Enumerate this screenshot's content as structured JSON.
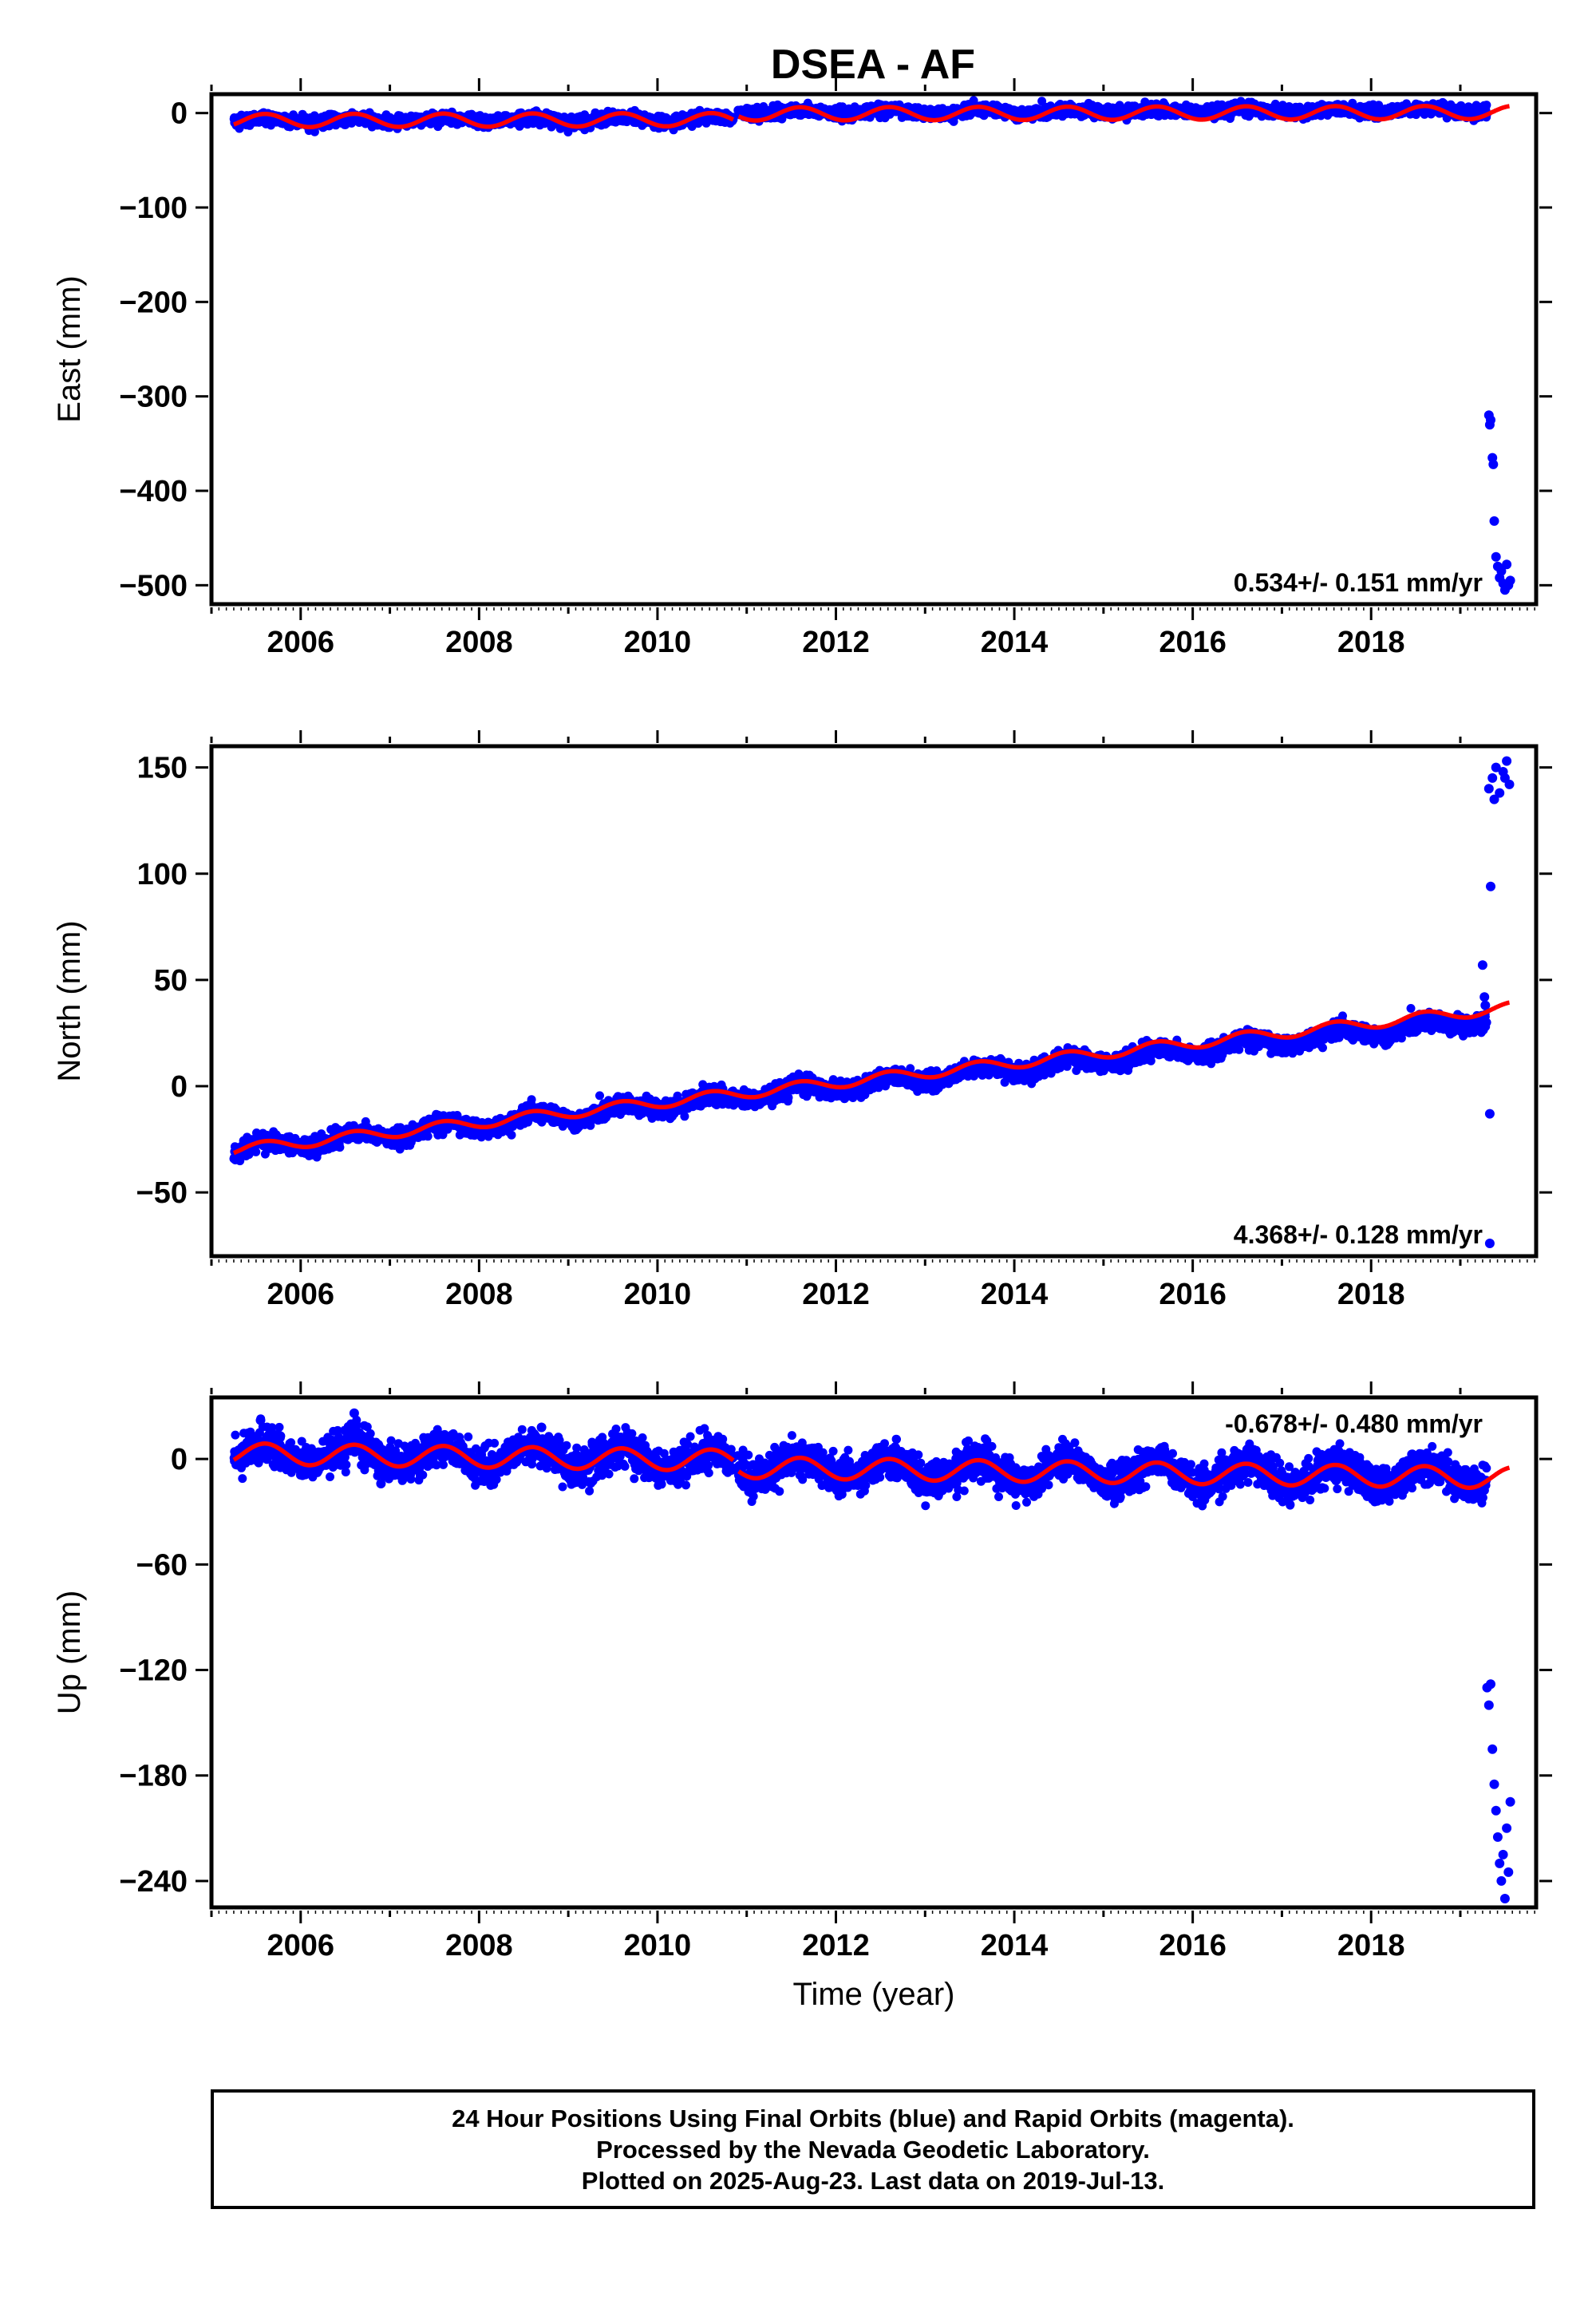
{
  "title": "DSEA - AF",
  "xlabel": "Time (year)",
  "colors": {
    "final_orbits": "#0000ff",
    "fit_model": "#ff0000",
    "frame": "#000000"
  },
  "caption": {
    "line1": "24 Hour Positions Using Final Orbits (blue) and Rapid Orbits (magenta).",
    "line2": "Processed by the Nevada Geodetic Laboratory.",
    "line3": "Plotted on 2025-Aug-23. Last data on 2019-Jul-13."
  },
  "chart_data": [
    {
      "type": "scatter",
      "title": "DSEA - AF",
      "ylabel": "East (mm)",
      "xlabel": "",
      "velocity_label": "0.534+/- 0.151 mm/yr",
      "velocity_label_position": "bottom-right",
      "xlim": [
        2005.0,
        2019.85
      ],
      "ylim": [
        -520,
        20
      ],
      "x_ticks": [
        2006,
        2008,
        2010,
        2012,
        2014,
        2016,
        2018
      ],
      "y_ticks": [
        0,
        -100,
        -200,
        -300,
        -400,
        -500
      ],
      "y_tick_labels": [
        "0",
        "−100",
        "−200",
        "−300",
        "−400",
        "−500"
      ],
      "grid": false,
      "series": [
        {
          "role": "final_orbits_daily_positions",
          "marker": "dot",
          "color": "#0000ff",
          "x_start": 2005.25,
          "x_end": 2019.3,
          "trend": {
            "offset_mm": -8,
            "rate_mm_per_yr": 0.534,
            "seasonal_amplitude_mm": 2,
            "scatter_mm": 3
          },
          "segments": [
            {
              "x_start": 2005.25,
              "x_end": 2010.85,
              "offset_mm": -8
            },
            {
              "x_start": 2010.9,
              "x_end": 2019.3,
              "offset_mm": 0
            }
          ],
          "outliers": [
            {
              "x": 2019.32,
              "y": -320
            },
            {
              "x": 2019.33,
              "y": -330
            },
            {
              "x": 2019.34,
              "y": -325
            },
            {
              "x": 2019.36,
              "y": -365
            },
            {
              "x": 2019.37,
              "y": -372
            },
            {
              "x": 2019.38,
              "y": -432
            },
            {
              "x": 2019.4,
              "y": -470
            },
            {
              "x": 2019.42,
              "y": -480
            },
            {
              "x": 2019.44,
              "y": -492
            },
            {
              "x": 2019.46,
              "y": -485
            },
            {
              "x": 2019.48,
              "y": -498
            },
            {
              "x": 2019.5,
              "y": -505
            },
            {
              "x": 2019.52,
              "y": -478
            },
            {
              "x": 2019.54,
              "y": -500
            },
            {
              "x": 2019.56,
              "y": -495
            }
          ]
        },
        {
          "role": "model_fit",
          "line": true,
          "color": "#ff0000",
          "x_start": 2005.25,
          "x_end": 2019.55,
          "seasonal_amplitude_mm": 7,
          "segments": [
            {
              "x_start": 2005.25,
              "x_end": 2010.85,
              "offset_mm": -8
            },
            {
              "x_start": 2010.9,
              "x_end": 2019.55,
              "offset_mm": -2
            }
          ]
        }
      ]
    },
    {
      "type": "scatter",
      "ylabel": "North (mm)",
      "xlabel": "",
      "velocity_label": "4.368+/- 0.128 mm/yr",
      "velocity_label_position": "bottom-right",
      "xlim": [
        2005.0,
        2019.85
      ],
      "ylim": [
        -80,
        160
      ],
      "x_ticks": [
        2006,
        2008,
        2010,
        2012,
        2014,
        2016,
        2018
      ],
      "y_ticks": [
        150,
        100,
        50,
        0,
        -50
      ],
      "y_tick_labels": [
        "150",
        "100",
        "50",
        "0",
        "−50"
      ],
      "grid": false,
      "series": [
        {
          "role": "final_orbits_daily_positions",
          "marker": "dot",
          "color": "#0000ff",
          "x_start": 2005.25,
          "x_end": 2019.3,
          "trend": {
            "value_at_2005_25_mm": -30,
            "rate_mm_per_yr": 4.368,
            "seasonal_amplitude_mm": 2.5,
            "scatter_mm": 2
          },
          "outliers": [
            {
              "x": 2019.25,
              "y": 57
            },
            {
              "x": 2019.27,
              "y": 42
            },
            {
              "x": 2019.28,
              "y": 38
            },
            {
              "x": 2019.33,
              "y": -13
            },
            {
              "x": 2019.34,
              "y": 94
            },
            {
              "x": 2019.33,
              "y": -74
            },
            {
              "x": 2019.32,
              "y": 140
            },
            {
              "x": 2019.36,
              "y": 145
            },
            {
              "x": 2019.4,
              "y": 150
            },
            {
              "x": 2019.44,
              "y": 138
            },
            {
              "x": 2019.48,
              "y": 148
            },
            {
              "x": 2019.52,
              "y": 153
            },
            {
              "x": 2019.55,
              "y": 142
            },
            {
              "x": 2019.38,
              "y": 135
            },
            {
              "x": 2019.5,
              "y": 145
            }
          ]
        },
        {
          "role": "model_fit",
          "line": true,
          "color": "#ff0000",
          "x_start": 2005.25,
          "x_end": 2019.55,
          "value_at_2005_25_mm": -30,
          "end_value_mm": 37,
          "seasonal_amplitude_mm": 2.5
        }
      ]
    },
    {
      "type": "scatter",
      "ylabel": "Up (mm)",
      "xlabel": "Time (year)",
      "velocity_label": "-0.678+/- 0.480 mm/yr",
      "velocity_label_position": "top-right",
      "xlim": [
        2005.0,
        2019.85
      ],
      "ylim": [
        -255,
        35
      ],
      "x_ticks": [
        2006,
        2008,
        2010,
        2012,
        2014,
        2016,
        2018
      ],
      "y_ticks": [
        0,
        -60,
        -120,
        -180,
        -240
      ],
      "y_tick_labels": [
        "0",
        "−60",
        "−120",
        "−180",
        "−240"
      ],
      "grid": false,
      "series": [
        {
          "role": "final_orbits_daily_positions",
          "marker": "dot",
          "color": "#0000ff",
          "x_start": 2005.25,
          "x_end": 2019.3,
          "trend": {
            "offset_mm": 3,
            "rate_mm_per_yr": -0.678,
            "seasonal_amplitude_mm": 6,
            "scatter_mm": 5
          },
          "segments": [
            {
              "x_start": 2005.25,
              "x_end": 2010.85,
              "offset_mm": 3
            },
            {
              "x_start": 2010.9,
              "x_end": 2019.3,
              "offset_mm": -1
            }
          ],
          "outliers": [
            {
              "x": 2005.55,
              "y": 22
            },
            {
              "x": 2006.6,
              "y": 26
            },
            {
              "x": 2008.7,
              "y": 18
            },
            {
              "x": 2006.9,
              "y": -14
            },
            {
              "x": 2019.3,
              "y": -130
            },
            {
              "x": 2019.32,
              "y": -140
            },
            {
              "x": 2019.34,
              "y": -128
            },
            {
              "x": 2019.36,
              "y": -165
            },
            {
              "x": 2019.38,
              "y": -185
            },
            {
              "x": 2019.4,
              "y": -200
            },
            {
              "x": 2019.42,
              "y": -215
            },
            {
              "x": 2019.44,
              "y": -230
            },
            {
              "x": 2019.46,
              "y": -240
            },
            {
              "x": 2019.48,
              "y": -225
            },
            {
              "x": 2019.5,
              "y": -250
            },
            {
              "x": 2019.52,
              "y": -210
            },
            {
              "x": 2019.54,
              "y": -235
            },
            {
              "x": 2019.56,
              "y": -195
            }
          ]
        },
        {
          "role": "model_fit",
          "line": true,
          "color": "#ff0000",
          "x_start": 2005.25,
          "x_end": 2019.55,
          "seasonal_amplitude_mm": 6,
          "segments": [
            {
              "x_start": 2005.25,
              "x_end": 2010.85,
              "offset_mm": 3
            },
            {
              "x_start": 2010.9,
              "x_end": 2019.55,
              "offset_mm": -1
            }
          ]
        }
      ]
    }
  ]
}
